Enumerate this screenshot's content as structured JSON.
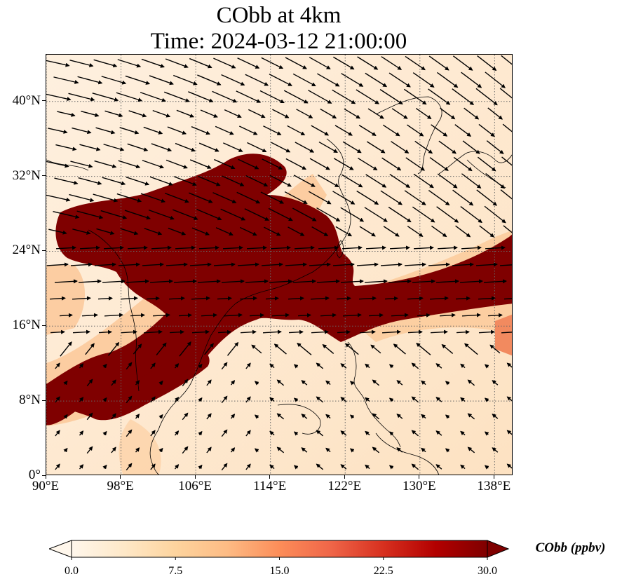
{
  "title": {
    "line1": "CObb at 4km",
    "line2": "Time: 2024-03-12 21:00:00"
  },
  "map": {
    "projection": "PlateCarree",
    "lon_range": [
      90,
      140
    ],
    "lat_range": [
      0,
      45
    ],
    "gridlines": "dotted",
    "lat_ticks": [
      {
        "value": 40,
        "label": "40°N"
      },
      {
        "value": 32,
        "label": "32°N"
      },
      {
        "value": 24,
        "label": "24°N"
      },
      {
        "value": 16,
        "label": "16°N"
      },
      {
        "value": 8,
        "label": "8°N"
      },
      {
        "value": 0,
        "label": "0°"
      }
    ],
    "lon_ticks": [
      {
        "value": 90,
        "label": "90°E"
      },
      {
        "value": 98,
        "label": "98°E"
      },
      {
        "value": 106,
        "label": "106°E"
      },
      {
        "value": 114,
        "label": "114°E"
      },
      {
        "value": 122,
        "label": "122°E"
      },
      {
        "value": 130,
        "label": "130°E"
      },
      {
        "value": 138,
        "label": "138°E"
      }
    ],
    "plume_color": "#7f0000",
    "coastline_color": "#000000",
    "wind_vectors": "black arrows"
  },
  "colorbar": {
    "label": "CObb (ppbv)",
    "min": 0,
    "max": 30,
    "extend": "both",
    "ticks": [
      {
        "value": 0,
        "label": "0.0"
      },
      {
        "value": 7.5,
        "label": "7.5"
      },
      {
        "value": 15,
        "label": "15.0"
      },
      {
        "value": 22.5,
        "label": "22.5"
      },
      {
        "value": 30,
        "label": "30.0"
      }
    ],
    "colormap": [
      "#fff7ec",
      "#fee8c8",
      "#fdd49e",
      "#fdbb84",
      "#fc8d59",
      "#ef6548",
      "#d7301f",
      "#b30000",
      "#7f0000"
    ]
  }
}
